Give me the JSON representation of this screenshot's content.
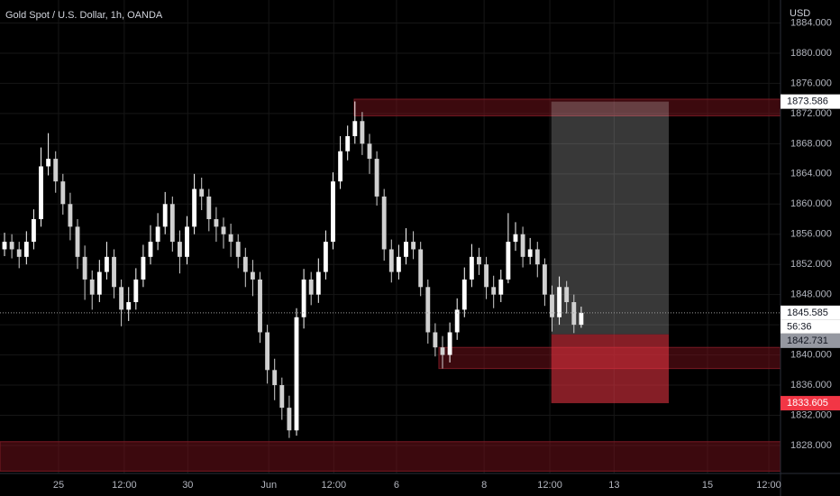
{
  "chart_data": {
    "type": "candlestick",
    "title": "Gold Spot / U.S. Dollar, 1h, OANDA",
    "currency": "USD",
    "up_color": "#ffffff",
    "down_color": "#d0d0d0",
    "grid": true,
    "xlim": [
      -0.62,
      106.3
    ],
    "ylim": [
      1824.29,
      1887.05
    ],
    "xticks": [
      {
        "value": 7.4,
        "label": "25"
      },
      {
        "value": 16.4,
        "label": "12:00"
      },
      {
        "value": 25.1,
        "label": "30"
      },
      {
        "value": 36.2,
        "label": "Jun"
      },
      {
        "value": 45.1,
        "label": "12:00"
      },
      {
        "value": 53.7,
        "label": "6"
      },
      {
        "value": 65.7,
        "label": "8"
      },
      {
        "value": 74.7,
        "label": "12:00"
      },
      {
        "value": 83.5,
        "label": "13"
      },
      {
        "value": 96.3,
        "label": "15"
      },
      {
        "value": 104.7,
        "label": "12:00"
      }
    ],
    "yticks": [
      {
        "value": 1828,
        "label": "1828.000"
      },
      {
        "value": 1832,
        "label": "1832.000"
      },
      {
        "value": 1836,
        "label": "1836.000"
      },
      {
        "value": 1840,
        "label": "1840.000"
      },
      {
        "value": 1844,
        "label": "1844.000"
      },
      {
        "value": 1848,
        "label": "1848.000"
      },
      {
        "value": 1852,
        "label": "1852.000"
      },
      {
        "value": 1856,
        "label": "1856.000"
      },
      {
        "value": 1860,
        "label": "1860.000"
      },
      {
        "value": 1864,
        "label": "1864.000"
      },
      {
        "value": 1868,
        "label": "1868.000"
      },
      {
        "value": 1872,
        "label": "1872.000"
      },
      {
        "value": 1876,
        "label": "1876.000"
      },
      {
        "value": 1880,
        "label": "1880.000"
      },
      {
        "value": 1884,
        "label": "1884.000"
      }
    ],
    "ohlc": [
      [
        1854,
        1856.2,
        1853.1,
        1855
      ],
      [
        1855,
        1856,
        1852.8,
        1854
      ],
      [
        1854,
        1855,
        1851.5,
        1853
      ],
      [
        1853,
        1856.4,
        1852,
        1855
      ],
      [
        1855,
        1859.3,
        1854,
        1858
      ],
      [
        1858,
        1867.5,
        1857,
        1865
      ],
      [
        1865,
        1869.4,
        1863.8,
        1866
      ],
      [
        1866,
        1867,
        1861.5,
        1863
      ],
      [
        1863,
        1864,
        1858.6,
        1860
      ],
      [
        1860,
        1861.5,
        1855.2,
        1857
      ],
      [
        1857,
        1858,
        1851.4,
        1853
      ],
      [
        1853,
        1854.5,
        1847.3,
        1850
      ],
      [
        1850,
        1851.2,
        1846,
        1848
      ],
      [
        1848,
        1852.6,
        1847,
        1851
      ],
      [
        1851,
        1855,
        1850,
        1853
      ],
      [
        1853,
        1854,
        1847.5,
        1849
      ],
      [
        1849,
        1850,
        1843.8,
        1846
      ],
      [
        1846,
        1849,
        1844.5,
        1847
      ],
      [
        1847,
        1851.5,
        1846,
        1850
      ],
      [
        1850,
        1854.6,
        1849,
        1853
      ],
      [
        1853,
        1857.2,
        1852,
        1855
      ],
      [
        1855,
        1858.8,
        1853.9,
        1857
      ],
      [
        1857,
        1861.6,
        1856,
        1860
      ],
      [
        1860,
        1861,
        1853.7,
        1855
      ],
      [
        1855,
        1856.5,
        1850.8,
        1853
      ],
      [
        1853,
        1858.4,
        1852,
        1857
      ],
      [
        1857,
        1864,
        1856,
        1862
      ],
      [
        1862,
        1863.5,
        1859.2,
        1861
      ],
      [
        1861,
        1862,
        1856.4,
        1858
      ],
      [
        1858,
        1859.6,
        1855,
        1857
      ],
      [
        1857,
        1858.2,
        1854.1,
        1856
      ],
      [
        1856,
        1857.4,
        1853,
        1855
      ],
      [
        1855,
        1856,
        1851.5,
        1853
      ],
      [
        1853,
        1854.2,
        1849,
        1851
      ],
      [
        1851,
        1852.6,
        1847.8,
        1850
      ],
      [
        1850,
        1851,
        1841.6,
        1843
      ],
      [
        1843,
        1844,
        1836.2,
        1838
      ],
      [
        1838,
        1839.5,
        1834,
        1836
      ],
      [
        1836,
        1837,
        1831.4,
        1833
      ],
      [
        1833,
        1834.6,
        1829,
        1830
      ],
      [
        1830,
        1846.2,
        1829.3,
        1845
      ],
      [
        1845,
        1851.4,
        1843.5,
        1850
      ],
      [
        1850,
        1851,
        1846.6,
        1848
      ],
      [
        1848,
        1852.8,
        1846.9,
        1851
      ],
      [
        1851,
        1856.5,
        1850,
        1855
      ],
      [
        1855,
        1864.2,
        1854,
        1863
      ],
      [
        1863,
        1869,
        1862,
        1867
      ],
      [
        1867,
        1870.4,
        1865.8,
        1869
      ],
      [
        1869,
        1873.6,
        1868,
        1871
      ],
      [
        1871,
        1872.2,
        1866.5,
        1868
      ],
      [
        1868,
        1869.3,
        1864,
        1866
      ],
      [
        1866,
        1867,
        1859.8,
        1861
      ],
      [
        1861,
        1862,
        1852.5,
        1854
      ],
      [
        1854,
        1855.3,
        1849.6,
        1851
      ],
      [
        1851,
        1854.6,
        1850,
        1853
      ],
      [
        1853,
        1856.8,
        1852,
        1855
      ],
      [
        1855,
        1856.4,
        1852.7,
        1854
      ],
      [
        1854,
        1855,
        1847.8,
        1849
      ],
      [
        1849,
        1850,
        1841.5,
        1843
      ],
      [
        1843,
        1844.2,
        1839.8,
        1841
      ],
      [
        1841,
        1842.5,
        1838.2,
        1840
      ],
      [
        1840,
        1844.3,
        1839,
        1843
      ],
      [
        1843,
        1847.5,
        1842,
        1846
      ],
      [
        1846,
        1851.6,
        1845,
        1850
      ],
      [
        1850,
        1854.7,
        1849,
        1853
      ],
      [
        1853,
        1854.2,
        1850.6,
        1852
      ],
      [
        1852,
        1853,
        1847.4,
        1849
      ],
      [
        1849,
        1850.5,
        1846.2,
        1848
      ],
      [
        1848,
        1851.3,
        1847,
        1850
      ],
      [
        1850,
        1858.8,
        1849.5,
        1855
      ],
      [
        1855,
        1857.6,
        1853.8,
        1856
      ],
      [
        1856,
        1857,
        1851.6,
        1853
      ],
      [
        1853,
        1855.5,
        1852,
        1854
      ],
      [
        1854,
        1855,
        1850.3,
        1852
      ],
      [
        1852,
        1852.8,
        1846.5,
        1848
      ],
      [
        1848,
        1849.2,
        1843.1,
        1845
      ],
      [
        1845,
        1850.4,
        1844,
        1849
      ],
      [
        1849,
        1849.8,
        1845.5,
        1847
      ],
      [
        1847,
        1848,
        1842.9,
        1844
      ],
      [
        1844,
        1846.4,
        1843.6,
        1845.585
      ]
    ],
    "zones": [
      {
        "start": 47.9,
        "from": 1871.7,
        "to": 1873.9
      },
      {
        "start": 59.5,
        "from": 1838.2,
        "to": 1841
      },
      {
        "start": -0.62,
        "from": 1824.6,
        "to": 1828.5
      }
    ],
    "position": {
      "start": 74.9,
      "end": 91,
      "entry": 1842.731,
      "target": 1873.586,
      "stop": 1833.605
    },
    "last_price": 1845.585,
    "countdown": "56:36"
  }
}
